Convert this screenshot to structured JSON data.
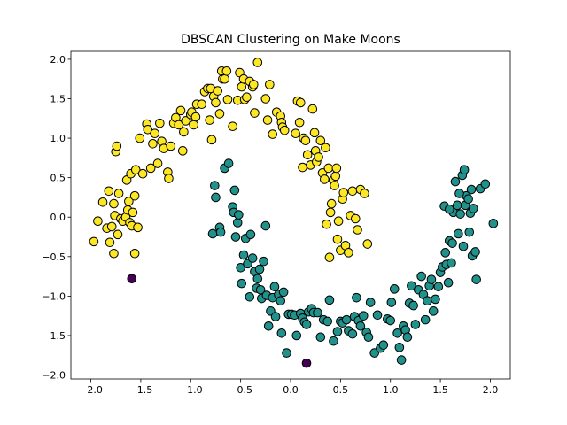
{
  "chart_data": {
    "type": "scatter",
    "title": "DBSCAN Clustering on Make Moons",
    "xlabel": "",
    "ylabel": "",
    "xlim": [
      -2.2,
      2.2
    ],
    "ylim": [
      -2.05,
      2.1
    ],
    "xticks": [
      -2.0,
      -1.5,
      -1.0,
      -0.5,
      0.0,
      0.5,
      1.0,
      1.5,
      2.0
    ],
    "xtick_labels": [
      "−2.0",
      "−1.5",
      "−1.0",
      "−0.5",
      "0.0",
      "0.5",
      "1.0",
      "1.5",
      "2.0"
    ],
    "yticks": [
      -2.0,
      -1.5,
      -1.0,
      -0.5,
      0.0,
      0.5,
      1.0,
      1.5,
      2.0
    ],
    "ytick_labels": [
      "−2.0",
      "−1.5",
      "−1.0",
      "−0.5",
      "0.0",
      "0.5",
      "1.0",
      "1.5",
      "2.0"
    ],
    "grid": false,
    "legend": "none",
    "colors": {
      "cluster_0": "#fde725",
      "cluster_1": "#21918c",
      "noise": "#440154",
      "edge": "#000000"
    },
    "series": [
      {
        "cluster": "cluster_0",
        "points": [
          [
            -1.97,
            -0.31
          ],
          [
            -1.93,
            -0.05
          ],
          [
            -1.88,
            0.19
          ],
          [
            -1.84,
            -0.14
          ],
          [
            -1.82,
            0.33
          ],
          [
            -1.81,
            -0.32
          ],
          [
            -1.79,
            -0.12
          ],
          [
            -1.77,
            -0.46
          ],
          [
            -1.77,
            0.17
          ],
          [
            -1.76,
            0.02
          ],
          [
            -1.75,
            0.83
          ],
          [
            -1.74,
            0.9
          ],
          [
            -1.73,
            -0.22
          ],
          [
            -1.72,
            0.3
          ],
          [
            -1.7,
            -0.02
          ],
          [
            -1.68,
            -0.05
          ],
          [
            -1.65,
            0.0
          ],
          [
            -1.64,
            0.47
          ],
          [
            -1.63,
            0.09
          ],
          [
            -1.62,
            0.2
          ],
          [
            -1.61,
            -0.07
          ],
          [
            -1.6,
            0.55
          ],
          [
            -1.59,
            -0.11
          ],
          [
            -1.58,
            0.06
          ],
          [
            -1.56,
            -0.46
          ],
          [
            -1.56,
            0.27
          ],
          [
            -1.55,
            0.6
          ],
          [
            -1.53,
            -0.13
          ],
          [
            -1.51,
            1.0
          ],
          [
            -1.48,
            0.55
          ],
          [
            -1.44,
            1.18
          ],
          [
            -1.43,
            1.11
          ],
          [
            -1.4,
            0.62
          ],
          [
            -1.38,
            0.93
          ],
          [
            -1.36,
            1.06
          ],
          [
            -1.33,
            0.68
          ],
          [
            -1.31,
            1.19
          ],
          [
            -1.29,
            0.96
          ],
          [
            -1.27,
            0.87
          ],
          [
            -1.23,
            0.57
          ],
          [
            -1.22,
            0.49
          ],
          [
            -1.2,
            0.9
          ],
          [
            -1.17,
            1.19
          ],
          [
            -1.15,
            1.26
          ],
          [
            -1.12,
            1.17
          ],
          [
            -1.1,
            1.35
          ],
          [
            -1.08,
            0.84
          ],
          [
            -1.07,
            1.08
          ],
          [
            -1.05,
            1.22
          ],
          [
            -1.0,
            1.3
          ],
          [
            -0.99,
            1.33
          ],
          [
            -0.97,
            1.17
          ],
          [
            -0.95,
            1.27
          ],
          [
            -0.94,
            1.43
          ],
          [
            -0.89,
            1.43
          ],
          [
            -0.86,
            1.59
          ],
          [
            -0.83,
            1.63
          ],
          [
            -0.81,
            1.23
          ],
          [
            -0.8,
            1.63
          ],
          [
            -0.79,
            0.98
          ],
          [
            -0.77,
            1.53
          ],
          [
            -0.75,
            1.45
          ],
          [
            -0.73,
            1.6
          ],
          [
            -0.71,
            1.31
          ],
          [
            -0.69,
            1.85
          ],
          [
            -0.68,
            1.75
          ],
          [
            -0.66,
            1.75
          ],
          [
            -0.64,
            1.85
          ],
          [
            -0.63,
            1.49
          ],
          [
            -0.58,
            1.15
          ],
          [
            -0.53,
            1.48
          ],
          [
            -0.51,
            1.83
          ],
          [
            -0.49,
            1.65
          ],
          [
            -0.47,
            1.75
          ],
          [
            -0.46,
            1.49
          ],
          [
            -0.44,
            1.52
          ],
          [
            -0.41,
            1.72
          ],
          [
            -0.38,
            1.65
          ],
          [
            -0.37,
            1.68
          ],
          [
            -0.36,
            1.32
          ],
          [
            -0.33,
            1.96
          ],
          [
            -0.25,
            1.5
          ],
          [
            -0.23,
            1.23
          ],
          [
            -0.21,
            1.68
          ],
          [
            -0.18,
            1.05
          ],
          [
            -0.14,
            1.33
          ],
          [
            -0.1,
            1.28
          ],
          [
            -0.09,
            1.2
          ],
          [
            -0.08,
            1.14
          ],
          [
            -0.06,
            1.1
          ],
          [
            0.05,
            1.06
          ],
          [
            0.07,
            1.47
          ],
          [
            0.09,
            1.2
          ],
          [
            0.1,
            1.45
          ],
          [
            0.12,
            0.63
          ],
          [
            0.13,
            1.0
          ],
          [
            0.15,
            0.97
          ],
          [
            0.17,
            0.79
          ],
          [
            0.2,
            0.66
          ],
          [
            0.22,
            1.37
          ],
          [
            0.24,
            1.07
          ],
          [
            0.25,
            0.84
          ],
          [
            0.26,
            0.7
          ],
          [
            0.28,
            0.76
          ],
          [
            0.3,
            0.97
          ],
          [
            0.32,
            0.56
          ],
          [
            0.34,
            0.48
          ],
          [
            0.35,
            0.88
          ],
          [
            0.36,
            -0.09
          ],
          [
            0.38,
            0.62
          ],
          [
            0.39,
            -0.51
          ],
          [
            0.4,
            0.06
          ],
          [
            0.41,
            0.17
          ],
          [
            0.43,
            0.47
          ],
          [
            0.44,
            0.4
          ],
          [
            0.45,
            0.52
          ],
          [
            0.46,
            0.62
          ],
          [
            0.47,
            -0.28
          ],
          [
            0.48,
            -0.05
          ],
          [
            0.5,
            -0.42
          ],
          [
            0.52,
            0.23
          ],
          [
            0.53,
            0.31
          ],
          [
            0.55,
            -0.36
          ],
          [
            0.58,
            -0.45
          ],
          [
            0.6,
            0.02
          ],
          [
            0.62,
            0.33
          ],
          [
            0.65,
            -0.02
          ],
          [
            0.67,
            -0.16
          ],
          [
            0.7,
            0.35
          ],
          [
            0.74,
            0.3
          ],
          [
            0.77,
            -0.34
          ]
        ]
      },
      {
        "cluster": "cluster_1",
        "points": [
          [
            -0.78,
            -0.21
          ],
          [
            -0.76,
            0.4
          ],
          [
            -0.75,
            0.25
          ],
          [
            -0.71,
            -0.13
          ],
          [
            -0.7,
            -0.19
          ],
          [
            -0.66,
            0.62
          ],
          [
            -0.62,
            0.68
          ],
          [
            -0.58,
            0.13
          ],
          [
            -0.57,
            0.06
          ],
          [
            -0.56,
            0.34
          ],
          [
            -0.55,
            -0.25
          ],
          [
            -0.53,
            -0.07
          ],
          [
            -0.52,
            0.03
          ],
          [
            -0.5,
            -0.64
          ],
          [
            -0.49,
            -0.84
          ],
          [
            -0.47,
            -0.48
          ],
          [
            -0.45,
            -0.27
          ],
          [
            -0.43,
            -0.59
          ],
          [
            -0.41,
            -1.01
          ],
          [
            -0.4,
            -0.22
          ],
          [
            -0.38,
            -0.52
          ],
          [
            -0.36,
            -0.69
          ],
          [
            -0.34,
            -0.9
          ],
          [
            -0.33,
            -0.78
          ],
          [
            -0.31,
            -0.66
          ],
          [
            -0.3,
            -0.92
          ],
          [
            -0.29,
            -1.03
          ],
          [
            -0.27,
            -0.56
          ],
          [
            -0.25,
            -0.11
          ],
          [
            -0.24,
            -0.99
          ],
          [
            -0.22,
            -1.38
          ],
          [
            -0.2,
            -1.19
          ],
          [
            -0.18,
            -1.02
          ],
          [
            -0.16,
            -0.88
          ],
          [
            -0.15,
            -1.26
          ],
          [
            -0.12,
            -0.98
          ],
          [
            -0.1,
            -1.06
          ],
          [
            -0.09,
            -1.47
          ],
          [
            -0.07,
            -0.95
          ],
          [
            -0.04,
            -1.72
          ],
          [
            -0.02,
            -1.23
          ],
          [
            0.01,
            -1.23
          ],
          [
            0.04,
            -1.24
          ],
          [
            0.06,
            -1.5
          ],
          [
            0.1,
            -1.22
          ],
          [
            0.12,
            -1.28
          ],
          [
            0.14,
            -1.33
          ],
          [
            0.16,
            -1.36
          ],
          [
            0.18,
            -1.2
          ],
          [
            0.21,
            -1.16
          ],
          [
            0.23,
            -1.21
          ],
          [
            0.27,
            -1.21
          ],
          [
            0.3,
            -1.52
          ],
          [
            0.33,
            -1.3
          ],
          [
            0.37,
            -1.32
          ],
          [
            0.39,
            -1.05
          ],
          [
            0.43,
            -1.57
          ],
          [
            0.47,
            -1.45
          ],
          [
            0.5,
            -1.32
          ],
          [
            0.52,
            -1.34
          ],
          [
            0.56,
            -1.3
          ],
          [
            0.58,
            -1.44
          ],
          [
            0.62,
            -1.48
          ],
          [
            0.64,
            -1.26
          ],
          [
            0.66,
            -1.02
          ],
          [
            0.68,
            -1.31
          ],
          [
            0.7,
            -1.38
          ],
          [
            0.73,
            -1.25
          ],
          [
            0.76,
            -1.46
          ],
          [
            0.78,
            -1.52
          ],
          [
            0.8,
            -1.08
          ],
          [
            0.84,
            -1.72
          ],
          [
            0.87,
            -1.24
          ],
          [
            0.9,
            -1.66
          ],
          [
            0.93,
            -1.62
          ],
          [
            0.97,
            -1.29
          ],
          [
            1.0,
            -1.31
          ],
          [
            1.01,
            -1.08
          ],
          [
            1.04,
            -0.91
          ],
          [
            1.07,
            -1.47
          ],
          [
            1.09,
            -1.65
          ],
          [
            1.11,
            -1.81
          ],
          [
            1.13,
            -1.38
          ],
          [
            1.15,
            -1.43
          ],
          [
            1.17,
            -1.52
          ],
          [
            1.19,
            -1.09
          ],
          [
            1.21,
            -0.87
          ],
          [
            1.23,
            -1.12
          ],
          [
            1.25,
            -1.36
          ],
          [
            1.28,
            -0.92
          ],
          [
            1.31,
            -0.75
          ],
          [
            1.33,
            -0.98
          ],
          [
            1.35,
            -1.3
          ],
          [
            1.37,
            -1.06
          ],
          [
            1.39,
            -0.87
          ],
          [
            1.41,
            -0.79
          ],
          [
            1.43,
            -1.19
          ],
          [
            1.45,
            -1.04
          ],
          [
            1.48,
            -0.88
          ],
          [
            1.5,
            -0.7
          ],
          [
            1.52,
            -0.63
          ],
          [
            1.55,
            -0.45
          ],
          [
            1.56,
            -0.6
          ],
          [
            1.58,
            -0.83
          ],
          [
            1.59,
            -0.3
          ],
          [
            1.61,
            -0.58
          ],
          [
            1.62,
            -0.33
          ],
          [
            1.63,
            0.06
          ],
          [
            1.65,
            0.45
          ],
          [
            1.67,
            0.15
          ],
          [
            1.68,
            -0.21
          ],
          [
            1.7,
            0.04
          ],
          [
            1.72,
            0.53
          ],
          [
            1.73,
            -0.37
          ],
          [
            1.74,
            0.6
          ],
          [
            1.75,
            0.15
          ],
          [
            1.76,
            0.27
          ],
          [
            1.78,
            0.23
          ],
          [
            1.79,
            -0.19
          ],
          [
            1.8,
            0.05
          ],
          [
            1.81,
            0.35
          ],
          [
            1.82,
            -0.49
          ],
          [
            1.83,
            0.11
          ],
          [
            1.85,
            -0.44
          ],
          [
            1.86,
            -0.79
          ],
          [
            1.9,
            0.36
          ],
          [
            1.95,
            0.42
          ],
          [
            2.03,
            -0.08
          ],
          [
            1.54,
            0.14
          ],
          [
            1.59,
            0.1
          ],
          [
            1.69,
            0.3
          ]
        ]
      },
      {
        "cluster": "noise",
        "points": [
          [
            -1.59,
            -0.78
          ],
          [
            0.16,
            -1.85
          ]
        ]
      }
    ]
  }
}
